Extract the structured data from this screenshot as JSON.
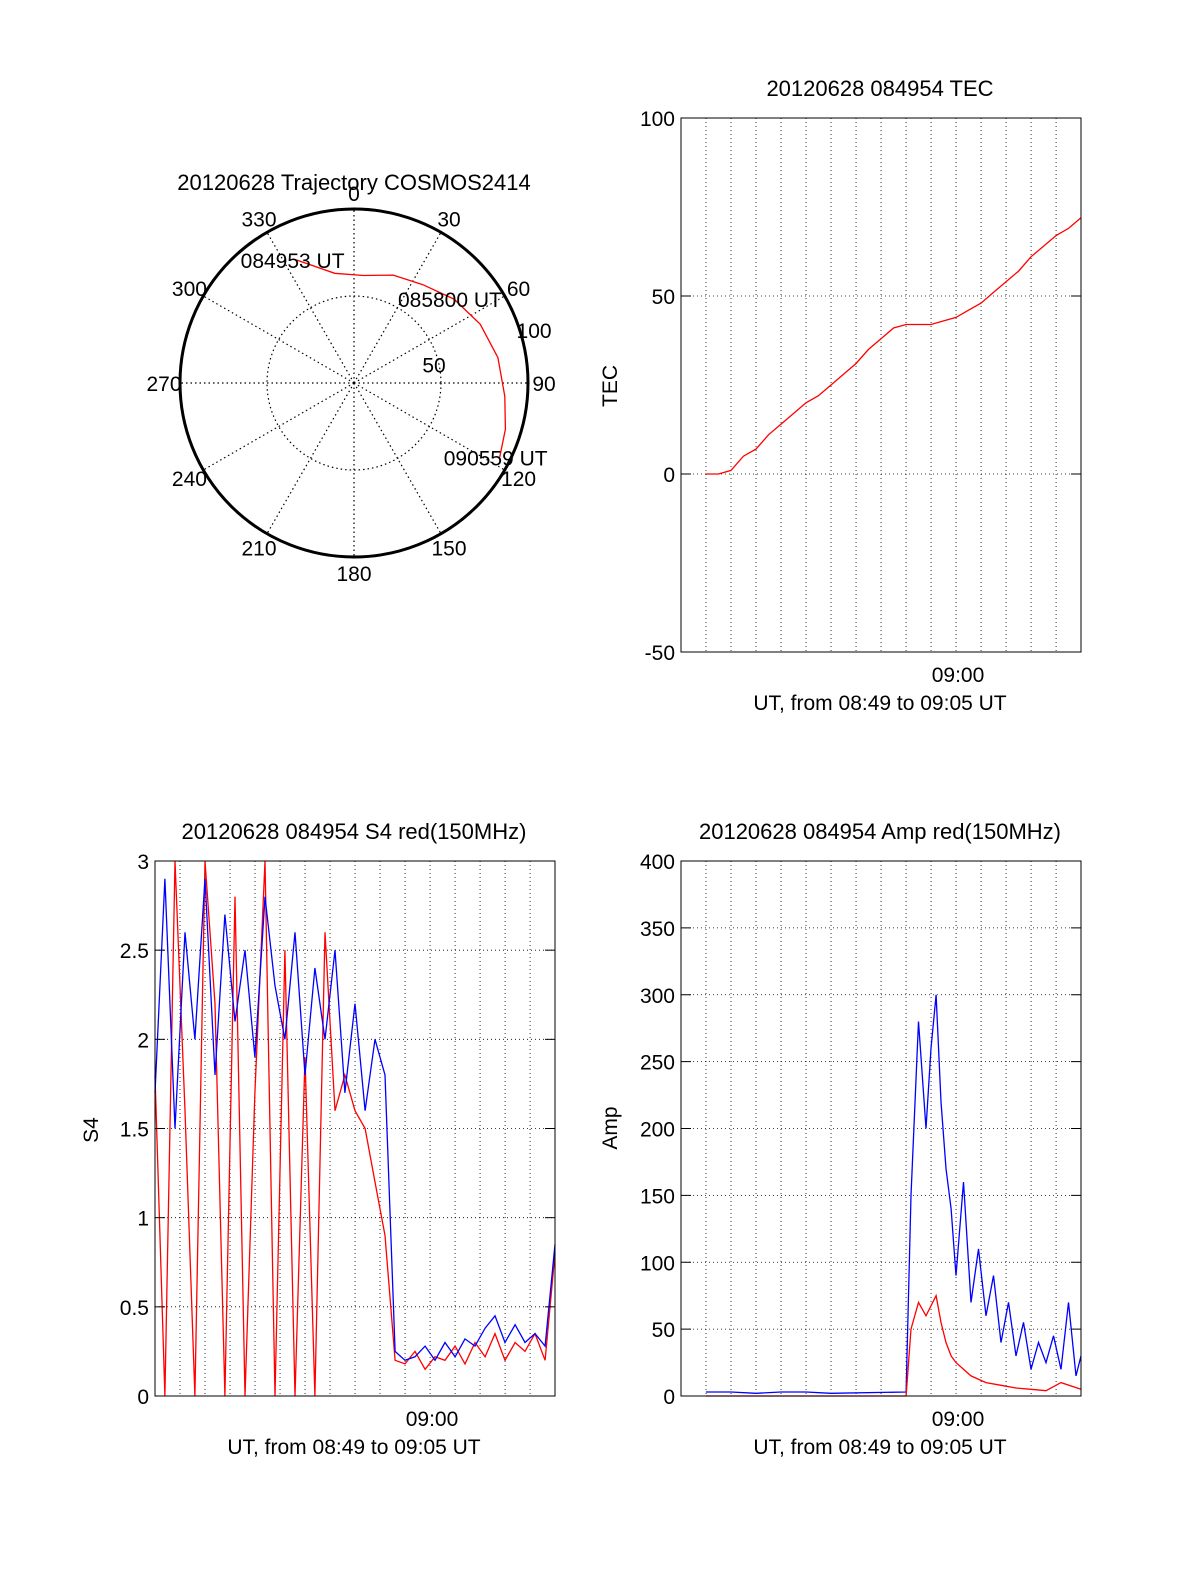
{
  "chart_data": [
    {
      "id": "polar",
      "type": "polar",
      "title": "20120628 Trajectory COSMOS2414",
      "azimuth_labels": [
        "0",
        "30",
        "60",
        "90",
        "120",
        "150",
        "180",
        "210",
        "240",
        "270",
        "300",
        "330"
      ],
      "radial_labels": [
        "50",
        "100"
      ],
      "trajectory_color": "#ff0000",
      "trajectory": [
        {
          "az": 335,
          "r": 78
        },
        {
          "az": 350,
          "r": 64
        },
        {
          "az": 5,
          "r": 62
        },
        {
          "az": 20,
          "r": 66
        },
        {
          "az": 35,
          "r": 69
        },
        {
          "az": 50,
          "r": 75
        },
        {
          "az": 65,
          "r": 80
        },
        {
          "az": 80,
          "r": 84
        },
        {
          "az": 95,
          "r": 87
        },
        {
          "az": 107,
          "r": 91
        },
        {
          "az": 117,
          "r": 94
        }
      ],
      "annotations": [
        {
          "text": "084953 UT",
          "az": 335,
          "r": 78
        },
        {
          "text": "085800 UT",
          "az": 50,
          "r": 75
        },
        {
          "text": "090559 UT",
          "az": 117,
          "r": 94
        }
      ]
    },
    {
      "id": "tec",
      "type": "line",
      "title": "20120628 084954 TEC",
      "xlabel": "UT, from 08:49 to 09:05 UT",
      "ylabel": "TEC",
      "xlim": [
        8.8167,
        9.0833
      ],
      "ylim": [
        -50,
        100
      ],
      "yticks": [
        "-50",
        "0",
        "50",
        "100"
      ],
      "xtick_label": "09:00",
      "grid": true,
      "series": [
        {
          "color": "#ff0000",
          "x": [
            8.8333,
            8.8417,
            8.85,
            8.8583,
            8.8667,
            8.875,
            8.8833,
            8.8917,
            8.9,
            8.9083,
            8.9167,
            8.925,
            8.9333,
            8.9417,
            8.95,
            8.9583,
            8.9667,
            8.975,
            8.9833,
            8.9917,
            9.0,
            9.0083,
            9.0167,
            9.025,
            9.0333,
            9.0417,
            9.05,
            9.0583,
            9.0667,
            9.075,
            9.0833
          ],
          "values": [
            0,
            0,
            1,
            5,
            7,
            11,
            14,
            17,
            20,
            22,
            25,
            28,
            31,
            35,
            38,
            41,
            42,
            42,
            42,
            43,
            44,
            46,
            48,
            51,
            54,
            57,
            61,
            64,
            67,
            69,
            72
          ]
        }
      ]
    },
    {
      "id": "s4",
      "type": "line",
      "title": "20120628 084954 S4 red(150MHz)",
      "xlabel": "UT, from 08:49 to 09:05 UT",
      "ylabel": "S4",
      "xlim": [
        8.8167,
        9.0833
      ],
      "ylim": [
        0,
        3
      ],
      "yticks": [
        "0",
        "0.5",
        "1",
        "1.5",
        "2",
        "2.5",
        "3"
      ],
      "xtick_label": "09:00",
      "grid": true,
      "series": [
        {
          "color": "#ff0000",
          "x": [
            8.8167,
            8.8233,
            8.83,
            8.8367,
            8.8433,
            8.85,
            8.8567,
            8.8633,
            8.87,
            8.8767,
            8.8833,
            8.89,
            8.8967,
            8.9033,
            8.91,
            8.9167,
            8.9233,
            8.93,
            8.9367,
            8.9433,
            8.95,
            8.9567,
            8.9633,
            8.97,
            8.9767,
            8.9833,
            8.99,
            8.9967,
            9.0033,
            9.01,
            9.0167,
            9.0233,
            9.03,
            9.0367,
            9.0433,
            9.05,
            9.0567,
            9.0633,
            9.07,
            9.0767,
            9.0833
          ],
          "values": [
            1.8,
            0,
            3.0,
            1.6,
            0,
            3.0,
            2.2,
            0,
            2.8,
            0,
            1.7,
            3.0,
            0,
            2.5,
            0,
            1.9,
            0,
            2.6,
            1.6,
            1.8,
            1.6,
            1.5,
            1.2,
            0.9,
            0.2,
            0.18,
            0.25,
            0.15,
            0.22,
            0.2,
            0.28,
            0.18,
            0.3,
            0.22,
            0.35,
            0.2,
            0.3,
            0.25,
            0.35,
            0.2,
            0.8
          ]
        },
        {
          "color": "#0000ff",
          "x": [
            8.8167,
            8.8233,
            8.83,
            8.8367,
            8.8433,
            8.85,
            8.8567,
            8.8633,
            8.87,
            8.8767,
            8.8833,
            8.89,
            8.8967,
            8.9033,
            8.91,
            8.9167,
            8.9233,
            8.93,
            8.9367,
            8.9433,
            8.95,
            8.9567,
            8.9633,
            8.97,
            8.9767,
            8.9833,
            8.99,
            8.9967,
            9.0033,
            9.01,
            9.0167,
            9.0233,
            9.03,
            9.0367,
            9.0433,
            9.05,
            9.0567,
            9.0633,
            9.07,
            9.0767,
            9.0833
          ],
          "values": [
            1.7,
            2.9,
            1.5,
            2.6,
            2.0,
            2.9,
            1.8,
            2.7,
            2.1,
            2.5,
            1.9,
            2.8,
            2.3,
            2.0,
            2.6,
            1.8,
            2.4,
            2.0,
            2.5,
            1.7,
            2.2,
            1.6,
            2.0,
            1.8,
            0.25,
            0.2,
            0.22,
            0.28,
            0.2,
            0.3,
            0.22,
            0.32,
            0.28,
            0.38,
            0.45,
            0.3,
            0.4,
            0.3,
            0.35,
            0.28,
            0.85
          ]
        }
      ]
    },
    {
      "id": "amp",
      "type": "line",
      "title": "20120628 084954 Amp red(150MHz)",
      "xlabel": "UT, from 08:49 to 09:05 UT",
      "ylabel": "Amp",
      "xlim": [
        8.8167,
        9.0833
      ],
      "ylim": [
        0,
        400
      ],
      "yticks": [
        "0",
        "50",
        "100",
        "150",
        "200",
        "250",
        "300",
        "350",
        "400"
      ],
      "xtick_label": "09:00",
      "grid": true,
      "series": [
        {
          "color": "#0000ff",
          "x": [
            8.8333,
            8.85,
            8.8667,
            8.8833,
            8.9,
            8.9167,
            8.9667,
            8.97,
            8.975,
            8.98,
            8.9833,
            8.9867,
            8.99,
            8.9933,
            8.9967,
            9.0,
            9.005,
            9.01,
            9.015,
            9.02,
            9.025,
            9.03,
            9.035,
            9.04,
            9.045,
            9.05,
            9.055,
            9.06,
            9.065,
            9.07,
            9.075,
            9.08,
            9.0833
          ],
          "values": [
            3,
            3,
            2,
            3,
            3,
            2,
            3,
            150,
            280,
            200,
            260,
            300,
            220,
            170,
            140,
            90,
            160,
            70,
            110,
            60,
            90,
            40,
            70,
            30,
            55,
            20,
            40,
            25,
            45,
            20,
            70,
            15,
            30
          ]
        },
        {
          "color": "#ff0000",
          "x": [
            8.8333,
            8.9667,
            8.97,
            8.975,
            8.98,
            8.9867,
            8.99,
            8.9933,
            8.9967,
            9.0,
            9.01,
            9.02,
            9.03,
            9.04,
            9.05,
            9.06,
            9.07,
            9.0833
          ],
          "values": [
            0,
            0,
            50,
            70,
            60,
            75,
            55,
            40,
            30,
            25,
            15,
            10,
            8,
            6,
            5,
            4,
            10,
            5
          ]
        }
      ]
    }
  ]
}
